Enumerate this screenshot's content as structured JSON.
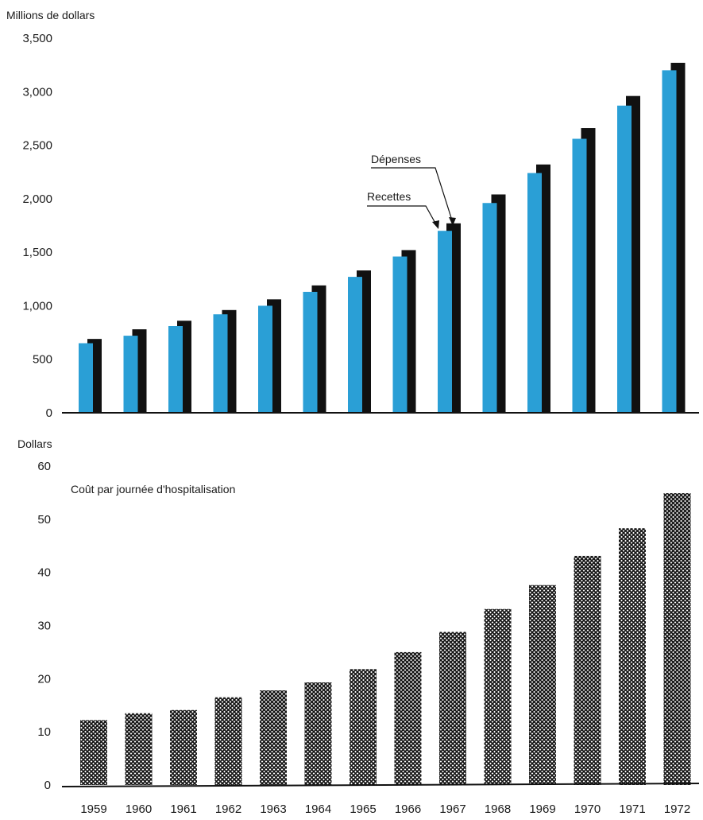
{
  "chart_data": [
    {
      "type": "bar",
      "ylabel": "Millions de dollars",
      "ylim": [
        0,
        3500
      ],
      "yticks": [
        "0",
        "500",
        "1,000",
        "1,500",
        "2,000",
        "2,500",
        "3,000",
        "3,500"
      ],
      "categories": [
        "1959",
        "1960",
        "1961",
        "1962",
        "1963",
        "1964",
        "1965",
        "1966",
        "1967",
        "1968",
        "1969",
        "1970",
        "1971",
        "1972"
      ],
      "series": [
        {
          "name": "Recettes",
          "color": "#2a9fd6",
          "values": [
            650,
            720,
            810,
            920,
            1000,
            1130,
            1270,
            1460,
            1700,
            1960,
            2240,
            2560,
            2870,
            3200
          ]
        },
        {
          "name": "Dépenses",
          "color": "#111111",
          "values": [
            690,
            780,
            860,
            960,
            1060,
            1190,
            1330,
            1520,
            1770,
            2040,
            2320,
            2660,
            2960,
            3270
          ]
        }
      ],
      "annotations": [
        {
          "text": "Dépenses",
          "target": "Dépenses",
          "category": "1967"
        },
        {
          "text": "Recettes",
          "target": "Recettes",
          "category": "1967"
        }
      ],
      "grid": false,
      "legend": "none"
    },
    {
      "type": "bar",
      "ylabel": "Dollars",
      "title": "Coût par journée d'hospitalisation",
      "ylim": [
        0,
        60
      ],
      "yticks": [
        "0",
        "10",
        "20",
        "30",
        "40",
        "50",
        "60"
      ],
      "categories": [
        "1959",
        "1960",
        "1961",
        "1962",
        "1963",
        "1964",
        "1965",
        "1966",
        "1967",
        "1968",
        "1969",
        "1970",
        "1971",
        "1972"
      ],
      "values": [
        12.2,
        13.5,
        14.1,
        16.5,
        17.8,
        19.3,
        21.8,
        25.0,
        28.8,
        33.1,
        37.6,
        43.1,
        48.3,
        54.9
      ],
      "pattern": "crosshatch",
      "grid": false,
      "legend": "none"
    }
  ]
}
